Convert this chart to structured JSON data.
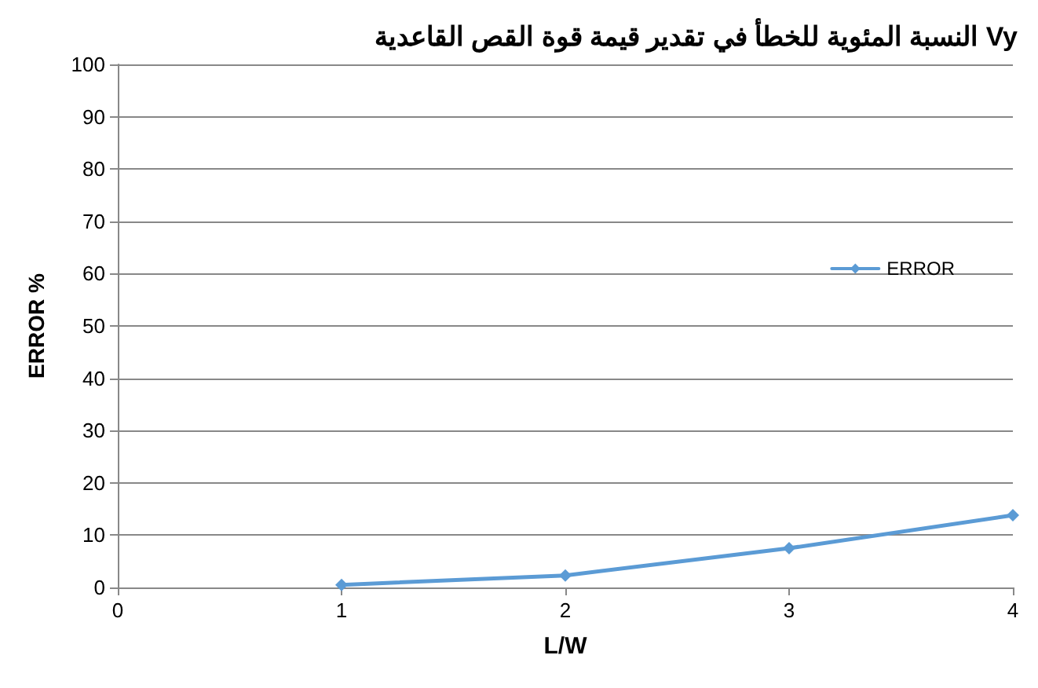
{
  "chart_data": {
    "type": "line",
    "title": "النسبة المئوية للخطأ في تقدير قيمة قوة القص القاعدية Vy",
    "xlabel": "L/W",
    "ylabel": "ERROR %",
    "x": [
      1,
      2,
      3,
      4
    ],
    "series": [
      {
        "name": "ERROR",
        "color": "#5b9bd5",
        "values": [
          0.5,
          2.3,
          7.5,
          13.8
        ]
      }
    ],
    "xlim": [
      0,
      4
    ],
    "xticks": [
      0,
      1,
      2,
      3,
      4
    ],
    "ylim": [
      0,
      100
    ],
    "yticks": [
      0,
      10,
      20,
      30,
      40,
      50,
      60,
      70,
      80,
      90,
      100
    ],
    "grid": "y",
    "legend": "right",
    "marker": "diamond",
    "line_style": "solid"
  }
}
